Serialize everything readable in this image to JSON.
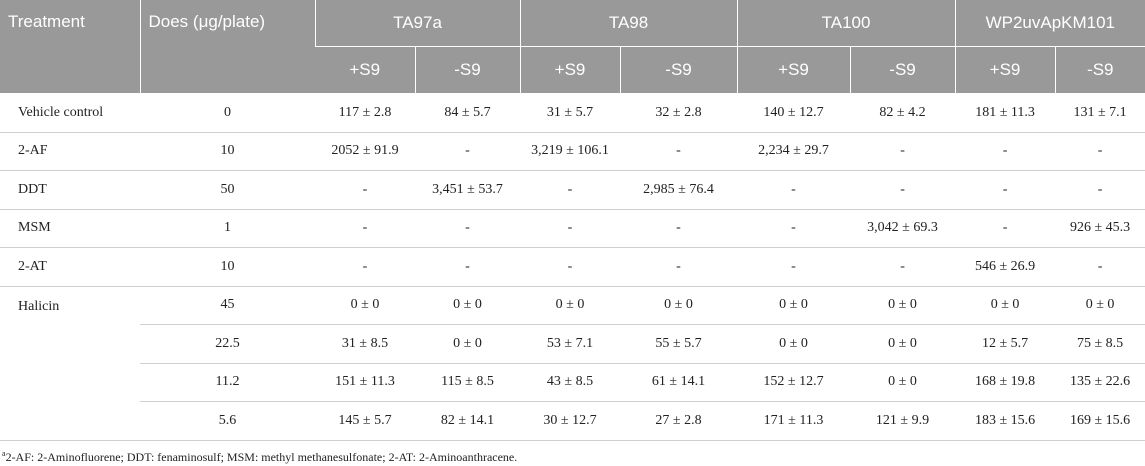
{
  "header": {
    "treatment": "Treatment",
    "dose": "Does (μg/plate)",
    "strains": [
      "TA97a",
      "TA98",
      "TA100",
      "WP2uvApKM101"
    ],
    "conditions": [
      "+S9",
      "-S9",
      "+S9",
      "-S9",
      "+S9",
      "-S9",
      "+S9",
      "-S9"
    ]
  },
  "body": [
    {
      "treatment": "Vehicle control",
      "doses": [
        {
          "dose": "0",
          "cells": [
            "117 ± 2.8",
            "84 ± 5.7",
            "31 ± 5.7",
            "32 ± 2.8",
            "140 ± 12.7",
            "82 ± 4.2",
            "181 ± 11.3",
            "131 ± 7.1"
          ]
        }
      ]
    },
    {
      "treatment": "2-AF",
      "doses": [
        {
          "dose": "10",
          "cells": [
            "2052 ± 91.9",
            "-",
            "3,219 ± 106.1",
            "-",
            "2,234 ± 29.7",
            "-",
            "-",
            "-"
          ]
        }
      ]
    },
    {
      "treatment": "DDT",
      "doses": [
        {
          "dose": "50",
          "cells": [
            "-",
            "3,451 ± 53.7",
            "-",
            "2,985 ± 76.4",
            "-",
            "-",
            "-",
            "-"
          ]
        }
      ]
    },
    {
      "treatment": "MSM",
      "doses": [
        {
          "dose": "1",
          "cells": [
            "-",
            "-",
            "-",
            "-",
            "-",
            "3,042 ± 69.3",
            "-",
            "926 ± 45.3"
          ]
        }
      ]
    },
    {
      "treatment": "2-AT",
      "doses": [
        {
          "dose": "10",
          "cells": [
            "-",
            "-",
            "-",
            "-",
            "-",
            "-",
            "546 ± 26.9",
            "-"
          ]
        }
      ]
    },
    {
      "treatment": "Halicin",
      "doses": [
        {
          "dose": "45",
          "cells": [
            "0 ± 0",
            "0 ± 0",
            "0 ± 0",
            "0 ± 0",
            "0 ± 0",
            "0 ± 0",
            "0 ± 0",
            "0 ± 0"
          ]
        },
        {
          "dose": "22.5",
          "cells": [
            "31 ± 8.5",
            "0 ± 0",
            "53 ± 7.1",
            "55 ± 5.7",
            "0 ± 0",
            "0 ± 0",
            "12 ± 5.7",
            "75 ± 8.5"
          ]
        },
        {
          "dose": "11.2",
          "cells": [
            "151 ± 11.3",
            "115 ± 8.5",
            "43 ± 8.5",
            "61 ± 14.1",
            "152 ± 12.7",
            "0 ± 0",
            "168 ± 19.8",
            "135 ± 22.6"
          ]
        },
        {
          "dose": "5.6",
          "cells": [
            "145 ± 5.7",
            "82 ± 14.1",
            "30 ± 12.7",
            "27 ± 2.8",
            "171 ± 11.3",
            "121 ± 9.9",
            "183 ± 15.6",
            "169 ± 15.6"
          ]
        }
      ]
    }
  ],
  "footnote": {
    "marker": "a",
    "text": "2-AF: 2-Aminofluorene; DDT: fenaminosulf; MSM: methyl methanesulfonate; 2-AT: 2-Aminoanthracene."
  }
}
